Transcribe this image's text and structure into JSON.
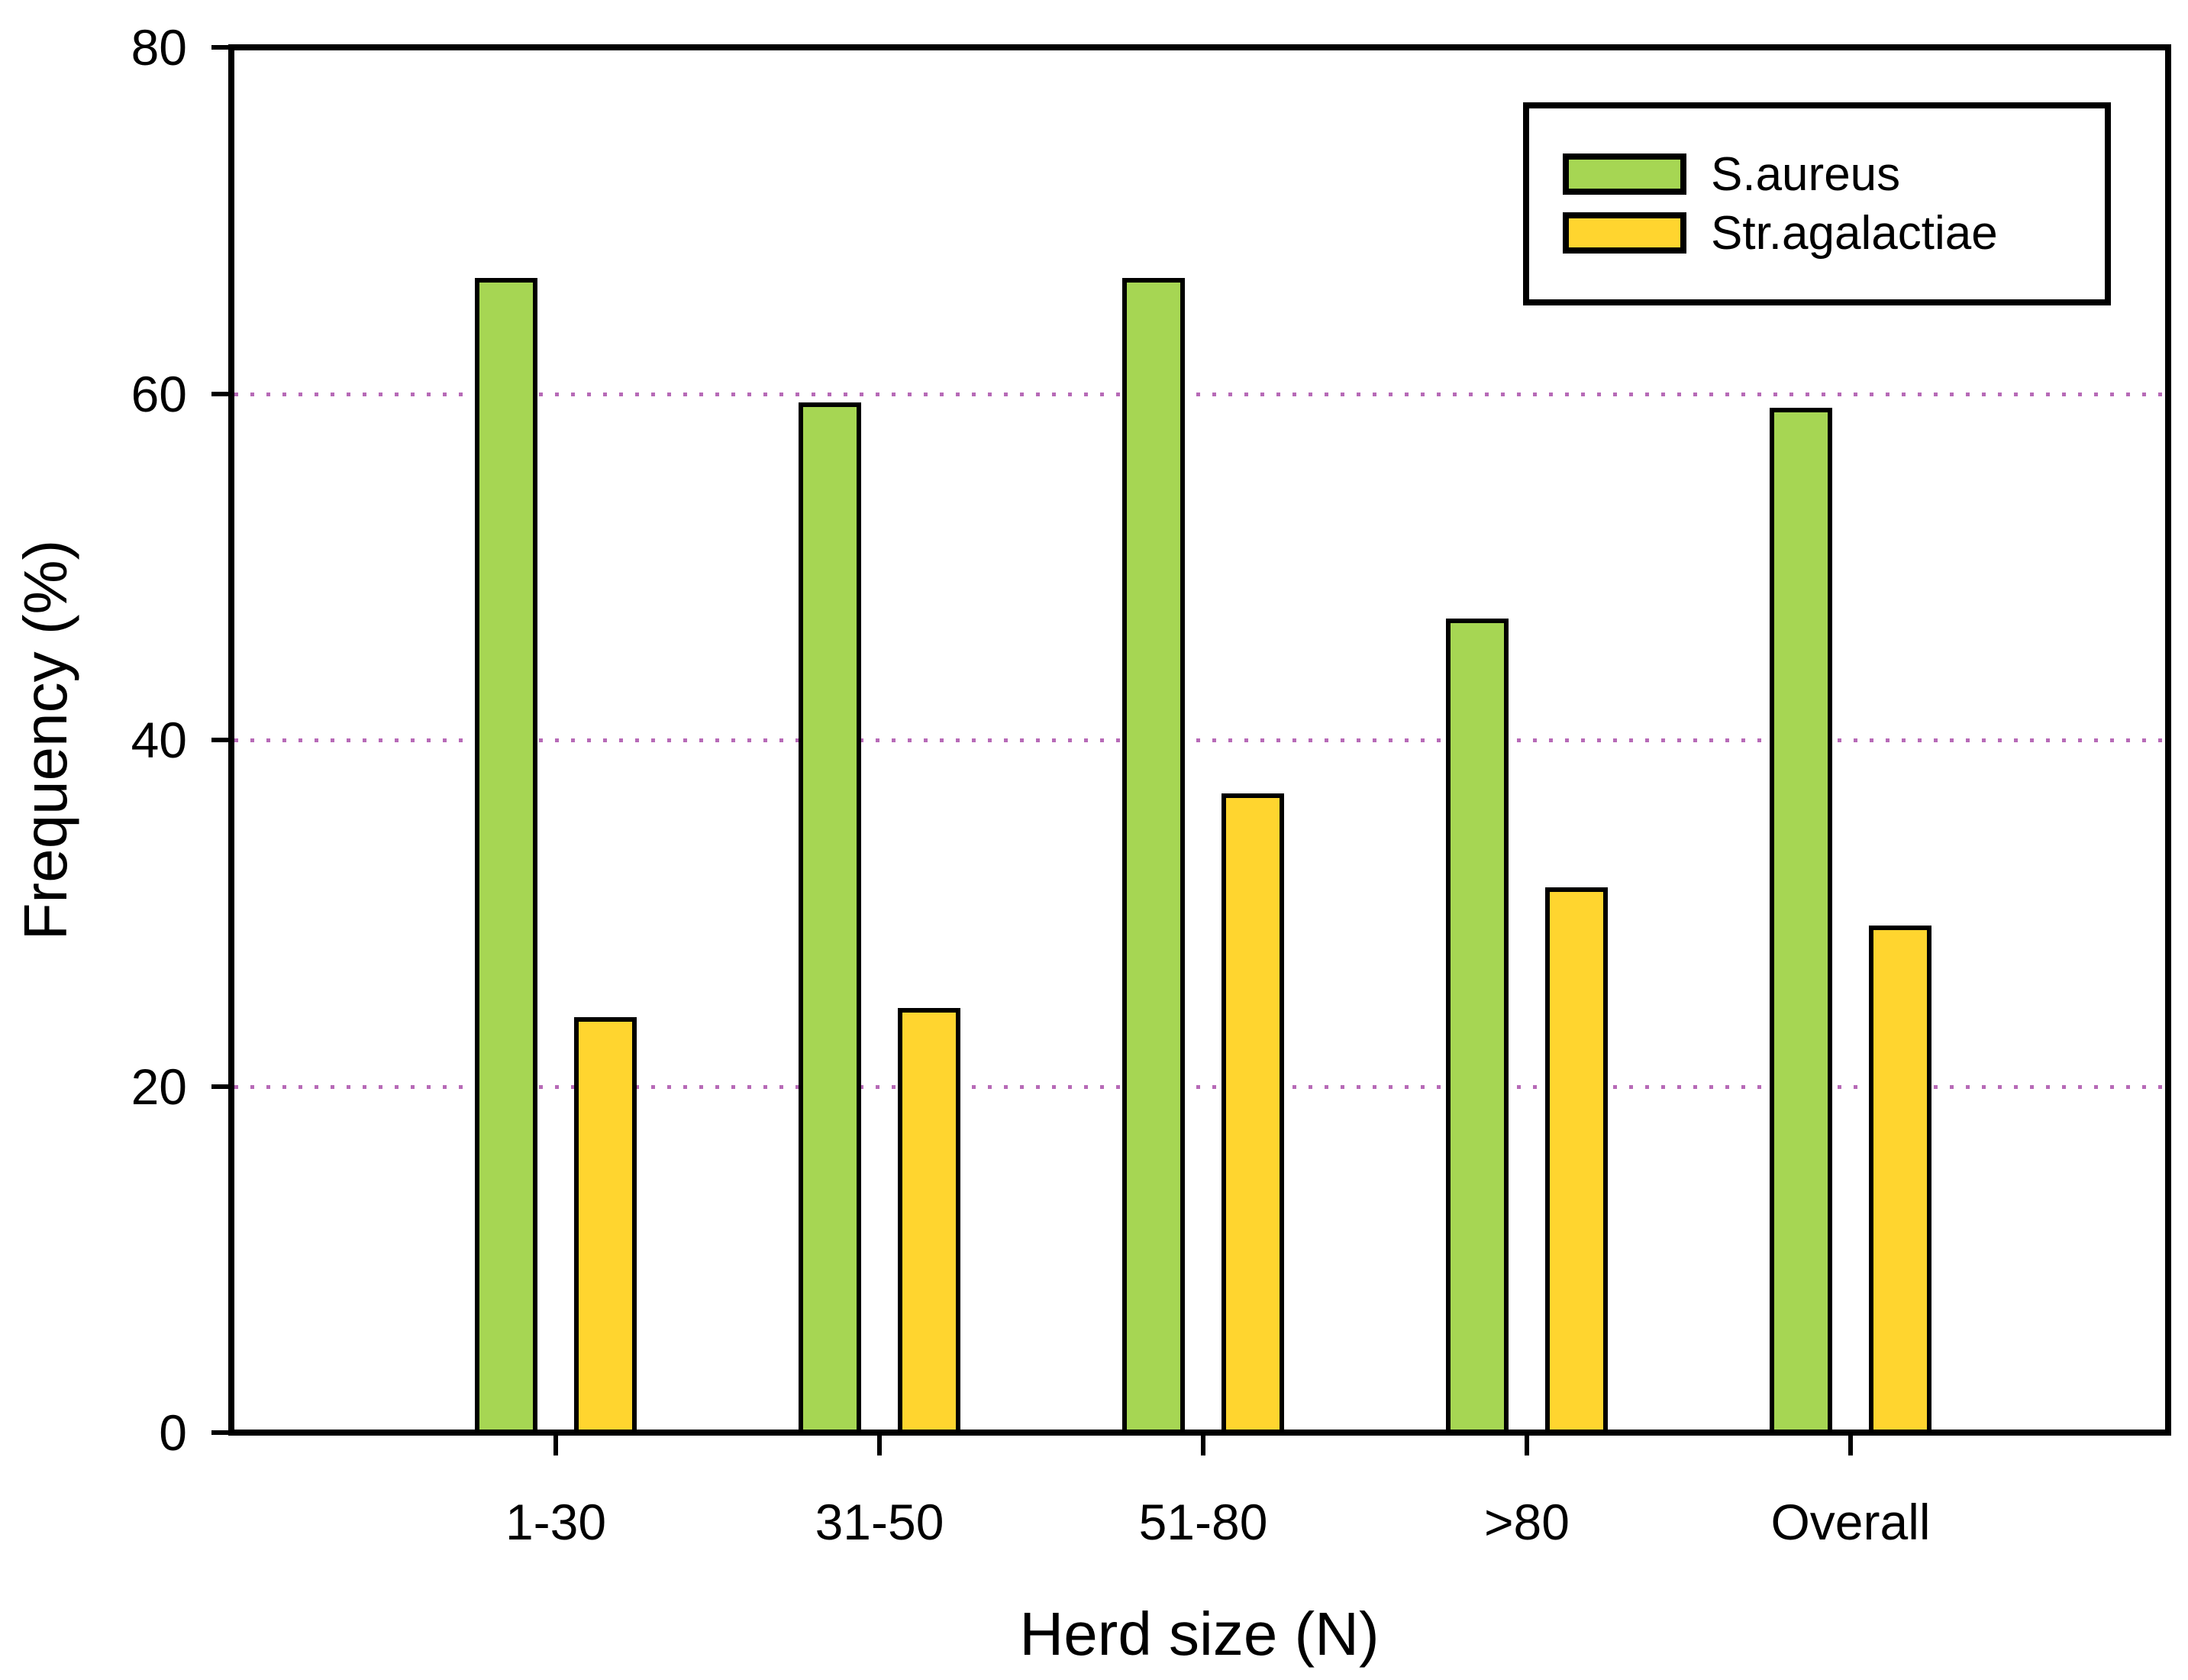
{
  "chart_data": {
    "type": "bar",
    "title": "",
    "categories": [
      "1-30",
      "31-50",
      "51-80",
      ">80",
      "Overall"
    ],
    "series": [
      {
        "name": "S.aureus",
        "color": "#A6D653",
        "values": [
          66.7,
          59.5,
          66.7,
          47.0,
          59.2
        ]
      },
      {
        "name": "Str.agalactiae",
        "color": "#FFD52F",
        "values": [
          24.0,
          24.5,
          36.9,
          31.5,
          29.3
        ]
      }
    ],
    "xlabel": "Herd size (N)",
    "ylabel": "Frequency (%)",
    "ylim": [
      0,
      80
    ],
    "yticks": [
      0,
      20,
      40,
      60,
      80
    ],
    "gridlines": {
      "values": [
        20,
        40,
        60
      ],
      "style": "dotted",
      "color": "#B76AB7"
    },
    "legend": {
      "position": "top-right",
      "entries": [
        "S.aureus",
        "Str.agalactiae"
      ]
    },
    "bar_border_color": "#000000",
    "axis_frame_color": "#000000",
    "background_color": "#FFFFFF"
  }
}
